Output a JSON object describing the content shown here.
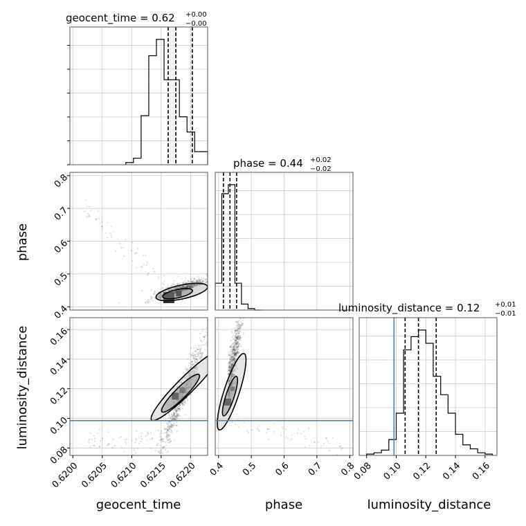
{
  "chart_data": {
    "type": "corner",
    "parameters": [
      "geocent_time",
      "phase",
      "luminosity_distance"
    ],
    "axis_labels": {
      "geocent_time": "geocent_time",
      "phase": "phase",
      "luminosity_distance": "luminosity_distance"
    },
    "titles": [
      {
        "param": "geocent_time",
        "name": "geocent_time",
        "median": "0.62",
        "plus": "+0.00",
        "minus": "−0.00"
      },
      {
        "param": "phase",
        "name": "phase",
        "median": "0.44",
        "plus": "+0.02",
        "minus": "−0.02"
      },
      {
        "param": "luminosity_distance",
        "name": "luminosity_distance",
        "median": "0.12",
        "plus": "+0.01",
        "minus": "−0.01"
      }
    ],
    "ranges": {
      "geocent_time": [
        0.61995,
        0.62229
      ],
      "phase": [
        0.39,
        0.81
      ],
      "luminosity_distance": [
        0.075,
        0.168
      ]
    },
    "ticks": {
      "geocent_time": [
        0.62,
        0.6205,
        0.621,
        0.6215,
        0.622
      ],
      "geocent_time_labels": [
        "0.6200",
        "0.6205",
        "0.6210",
        "0.6215",
        "0.6220"
      ],
      "phase": [
        0.4,
        0.5,
        0.6,
        0.7,
        0.8
      ],
      "phase_labels": [
        "0.4",
        "0.5",
        "0.6",
        "0.7",
        "0.8"
      ],
      "luminosity_distance": [
        0.08,
        0.1,
        0.12,
        0.14,
        0.16
      ],
      "luminosity_distance_labels": [
        "0.08",
        "0.10",
        "0.12",
        "0.14",
        "0.16"
      ]
    },
    "quantiles": {
      "geocent_time": [
        0.62162,
        0.62175,
        0.62203
      ],
      "phase": [
        0.415,
        0.435,
        0.455
      ],
      "luminosity_distance": [
        0.106,
        0.115,
        0.127
      ]
    },
    "truths": {
      "luminosity_distance": 0.0985
    },
    "histograms": {
      "geocent_time": {
        "edges": [
          0.6209,
          0.62103,
          0.62116,
          0.62129,
          0.62142,
          0.62155,
          0.62168,
          0.62181,
          0.62194,
          0.62207,
          0.6222,
          0.62229
        ],
        "counts": [
          2,
          6,
          45,
          100,
          115,
          78,
          78,
          44,
          30,
          12,
          12
        ]
      },
      "phase": {
        "edges": [
          0.39,
          0.41,
          0.43,
          0.45,
          0.47,
          0.49,
          0.51,
          0.53
        ],
        "counts": [
          18,
          78,
          84,
          18,
          4,
          1,
          0
        ]
      },
      "luminosity_distance": {
        "edges": [
          0.08,
          0.085,
          0.09,
          0.095,
          0.1,
          0.105,
          0.11,
          0.115,
          0.12,
          0.125,
          0.13,
          0.135,
          0.14,
          0.145,
          0.15,
          0.155,
          0.16,
          0.165
        ],
        "counts": [
          1,
          2,
          4,
          12,
          32,
          80,
          90,
          95,
          85,
          60,
          46,
          32,
          16,
          8,
          5,
          2,
          1
        ]
      }
    },
    "grid": true
  }
}
